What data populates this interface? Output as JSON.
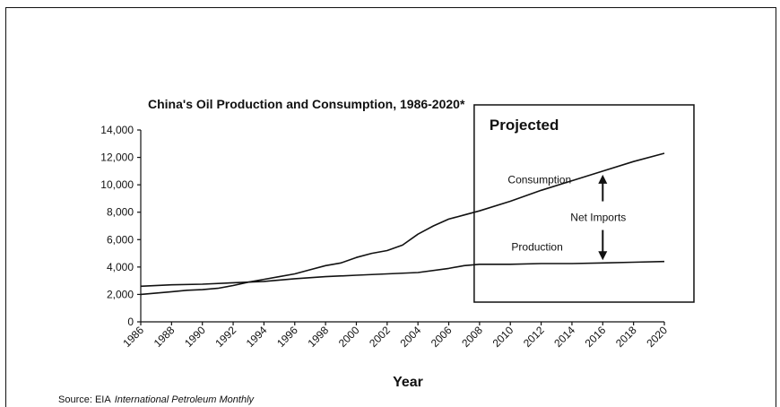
{
  "chart_data": {
    "type": "line",
    "title": "China's Oil Production and Consumption, 1986-2020*",
    "xlabel": "Year",
    "ylabel": "",
    "xlim": [
      1986,
      2020
    ],
    "ylim": [
      0,
      14000
    ],
    "yticks": [
      0,
      2000,
      4000,
      6000,
      8000,
      10000,
      12000,
      14000
    ],
    "ytick_labels": [
      "0",
      "2,000",
      "4,000",
      "6,000",
      "8,000",
      "10,000",
      "12,000",
      "14,000"
    ],
    "xticks": [
      1986,
      1988,
      1990,
      1992,
      1994,
      1996,
      1998,
      2000,
      2002,
      2004,
      2006,
      2008,
      2010,
      2012,
      2014,
      2016,
      2018,
      2020
    ],
    "xtick_labels": [
      "1986",
      "1988",
      "1990",
      "1992",
      "1994",
      "1996",
      "1998",
      "2000",
      "2002",
      "2004",
      "2006",
      "2008",
      "2010",
      "2012",
      "2014",
      "2016",
      "2018",
      "2020"
    ],
    "grid": false,
    "legend": "none",
    "series": [
      {
        "name": "Consumption",
        "x": [
          1986,
          1987,
          1988,
          1989,
          1990,
          1991,
          1992,
          1993,
          1994,
          1995,
          1996,
          1997,
          1998,
          1999,
          2000,
          2001,
          2002,
          2003,
          2004,
          2005,
          2006,
          2007,
          2008,
          2010,
          2012,
          2014,
          2016,
          2018,
          2020
        ],
        "values": [
          2000,
          2100,
          2200,
          2300,
          2350,
          2450,
          2650,
          2900,
          3100,
          3300,
          3500,
          3800,
          4100,
          4300,
          4700,
          5000,
          5200,
          5600,
          6400,
          7000,
          7500,
          7800,
          8100,
          8800,
          9600,
          10300,
          11000,
          11700,
          12300
        ]
      },
      {
        "name": "Production",
        "x": [
          1986,
          1988,
          1990,
          1992,
          1994,
          1996,
          1998,
          2000,
          2002,
          2004,
          2006,
          2007,
          2008,
          2010,
          2012,
          2014,
          2016,
          2018,
          2020
        ],
        "values": [
          2600,
          2700,
          2750,
          2850,
          2950,
          3150,
          3300,
          3400,
          3500,
          3600,
          3900,
          4100,
          4200,
          4200,
          4250,
          4250,
          4300,
          4350,
          4400
        ]
      }
    ],
    "annotations": {
      "projected_label": "Projected",
      "projected_from": 2008,
      "projected_to": 2022,
      "consumption_label": "Consumption",
      "production_label": "Production",
      "net_imports_label": "Net Imports",
      "net_imports_year": 2016
    },
    "source_label": "Source: EIA",
    "source_italic": "International Petroleum Monthly"
  }
}
